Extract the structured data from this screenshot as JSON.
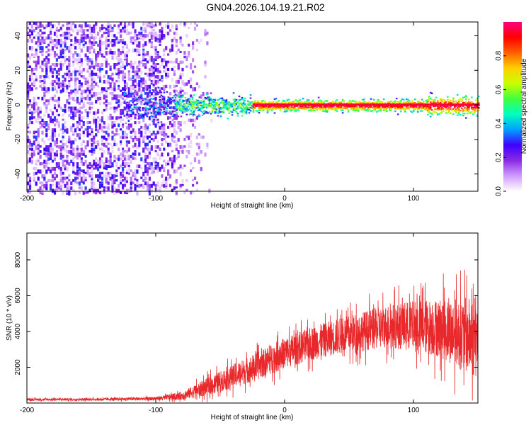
{
  "title": "GN04.2026.104.19.21.R02",
  "colors": {
    "snr_line": "#e8282a",
    "axis": "#000000",
    "background": "#ffffff"
  },
  "chart_data": [
    {
      "type": "heatmap",
      "title": "GN04.2026.104.19.21.R02",
      "xlabel": "Height of straight line (km)",
      "ylabel": "Frequency (Hz)",
      "xlim": [
        -200,
        150
      ],
      "ylim": [
        -50,
        48
      ],
      "x_ticks": [
        -200,
        -100,
        0,
        100
      ],
      "y_ticks": [
        -40,
        -20,
        0,
        20,
        40
      ],
      "x_tick_labels": [
        "-200",
        "-100",
        "0",
        "100"
      ],
      "y_tick_labels": [
        "-40",
        "-20",
        "0",
        "20",
        "40"
      ],
      "colorbar": {
        "label": "Normalized spectral amplitude",
        "range": [
          0,
          1
        ],
        "ticks": [
          0.0,
          0.2,
          0.4,
          0.6,
          0.8
        ],
        "tick_labels": [
          "0.0",
          "0.2",
          "0.4",
          "0.6",
          "0.8"
        ],
        "stops": [
          "#ffffff",
          "#cf9cff",
          "#8a2be2",
          "#3f00ff",
          "#00a0ff",
          "#00ffc0",
          "#40ff40",
          "#c8ff00",
          "#ffd000",
          "#ff6000",
          "#ff0000",
          "#ff0080"
        ]
      },
      "regions": {
        "noise_zone_end_km": -85,
        "signal_line_start_km": -85,
        "strong_line_start_km": -25,
        "line_center_hz": 0,
        "line_halfwidth_hz": 3
      }
    },
    {
      "type": "line",
      "title": "",
      "xlabel": "Height of straight line (km)",
      "ylabel": "SNR (10 * v/v)",
      "xlim": [
        -200,
        150
      ],
      "ylim": [
        0,
        9500
      ],
      "x_ticks": [
        -200,
        -100,
        0,
        100
      ],
      "y_ticks": [
        2000,
        4000,
        6000,
        8000
      ],
      "x_tick_labels": [
        "-200",
        "-100",
        "0",
        "100"
      ],
      "y_tick_labels": [
        "2000",
        "4000",
        "6000",
        "8000"
      ],
      "series": [
        {
          "name": "SNR",
          "envelope_x": [
            -200,
            -150,
            -100,
            -80,
            -60,
            -40,
            -20,
            0,
            20,
            40,
            60,
            80,
            100,
            120,
            140,
            150
          ],
          "envelope_mean": [
            200,
            200,
            250,
            400,
            900,
            1500,
            2100,
            2800,
            3300,
            3700,
            4000,
            4300,
            4300,
            4200,
            3800,
            3600
          ],
          "envelope_spread": [
            120,
            120,
            180,
            400,
            900,
            1200,
            1400,
            1600,
            1700,
            1800,
            2000,
            2200,
            2600,
            3000,
            3800,
            4200
          ]
        }
      ]
    }
  ]
}
